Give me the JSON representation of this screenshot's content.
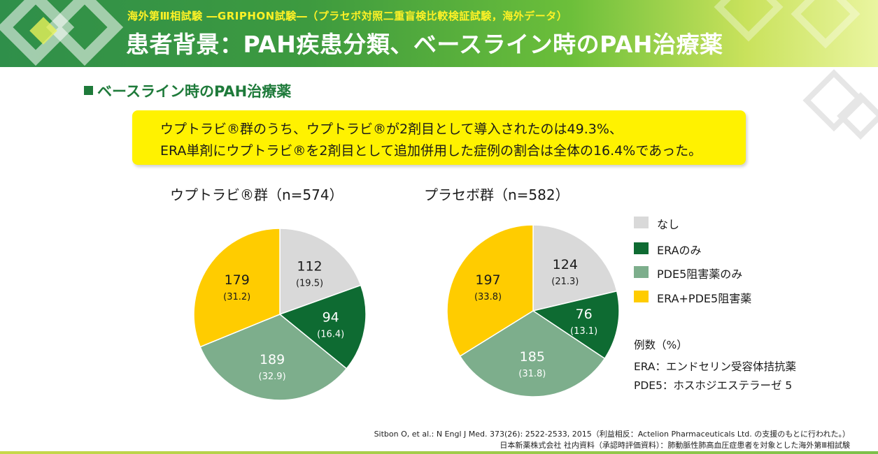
{
  "header": {
    "subtitle": "海外第Ⅲ相試験 ―GRIPHON試験―（プラセボ対照二重盲検比較検証試験，海外データ）",
    "title": "患者背景：PAH疾患分類、ベースライン時のPAH治療薬"
  },
  "section": {
    "heading": "ベースライン時のPAH治療薬"
  },
  "callout": {
    "line1": "ウプトラビ®群のうち、ウプトラビ®が2剤目として導入されたのは49.3%、",
    "line2": "ERA単剤にウプトラビ®を2剤目として追加併用した症例の割合は全体の16.4%であった。"
  },
  "colors": {
    "none": "#d9d9d9",
    "era_only": "#0e6b32",
    "pde5_only": "#7dae8c",
    "era_pde5": "#ffcc00",
    "header_green": "#2f8f4a",
    "callout_yellow": "#fff200"
  },
  "legend": {
    "items": [
      {
        "label": "なし",
        "color": "#d9d9d9"
      },
      {
        "label": "ERAのみ",
        "color": "#0e6b32"
      },
      {
        "label": "PDE5阻害薬のみ",
        "color": "#7dae8c"
      },
      {
        "label": "ERA+PDE5阻害薬",
        "color": "#ffcc00"
      }
    ]
  },
  "notes": {
    "unit": "例数（%）",
    "era": "ERA：エンドセリン受容体拮抗薬",
    "pde5": "PDE5：ホスホジエステラーゼ 5"
  },
  "footer": {
    "citation": "Sitbon O, et al.: N Engl J Med. 373(26): 2522-2533, 2015（利益相反：Actelion Pharmaceuticals Ltd. の支援のもとに行われた。）",
    "source": "日本新薬株式会社 社内資料（承認時評価資料）：肺動脈性肺高血圧症患者を対象とした海外第Ⅲ相試験"
  },
  "chart_data": [
    {
      "type": "pie",
      "title": "ウプトラビ®群（n=574）",
      "categories": [
        "なし",
        "ERAのみ",
        "PDE5阻害薬のみ",
        "ERA+PDE5阻害薬"
      ],
      "values": [
        112,
        94,
        189,
        179
      ],
      "percent_labels": [
        "(19.5)",
        "(16.4)",
        "(32.9)",
        "(31.2)"
      ],
      "colors": [
        "#d9d9d9",
        "#0e6b32",
        "#7dae8c",
        "#ffcc00"
      ]
    },
    {
      "type": "pie",
      "title": "プラセボ群（n=582）",
      "categories": [
        "なし",
        "ERAのみ",
        "PDE5阻害薬のみ",
        "ERA+PDE5阻害薬"
      ],
      "values": [
        124,
        76,
        185,
        197
      ],
      "percent_labels": [
        "(21.3)",
        "(13.1)",
        "(31.8)",
        "(33.8)"
      ],
      "colors": [
        "#d9d9d9",
        "#0e6b32",
        "#7dae8c",
        "#ffcc00"
      ]
    }
  ]
}
